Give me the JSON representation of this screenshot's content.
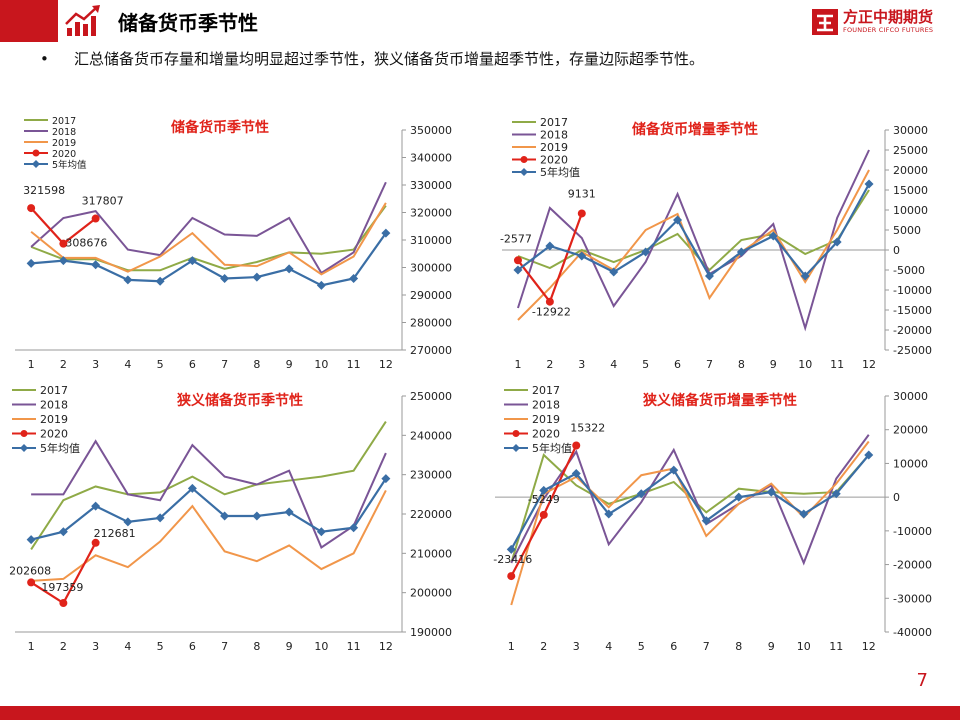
{
  "header": {
    "title": "储备货币季节性",
    "logo_cn": "方正中期期货",
    "logo_en": "FOUNDER CIFCO FUTURES",
    "accent": "#c8161d"
  },
  "summary": {
    "bullet": "•",
    "text": "汇总储备货币存量和增量均明显超过季节性，狭义储备货币增量超季节性，存量边际超季节性。"
  },
  "page_number": "7",
  "chart_data": [
    {
      "type": "line",
      "title": "储备货币季节性",
      "categories": [
        "1",
        "2",
        "3",
        "4",
        "5",
        "6",
        "7",
        "8",
        "9",
        "10",
        "11",
        "12"
      ],
      "ylim": [
        270000,
        350000
      ],
      "yticks": [
        "270000",
        "280000",
        "290000",
        "300000",
        "310000",
        "320000",
        "330000",
        "340000",
        "350000"
      ],
      "series": [
        {
          "name": "2017",
          "color": "#8faa47",
          "values": [
            307500,
            303000,
            303000,
            299000,
            299000,
            303500,
            299500,
            302000,
            305500,
            305000,
            306500,
            322500
          ]
        },
        {
          "name": "2018",
          "color": "#7a5596",
          "values": [
            307500,
            318000,
            320500,
            306500,
            304500,
            318000,
            312000,
            311500,
            318000,
            298000,
            305500,
            331000
          ]
        },
        {
          "name": "2019",
          "color": "#f1964a",
          "values": [
            313000,
            303500,
            303500,
            298500,
            304000,
            312500,
            301000,
            300500,
            305500,
            297500,
            304000,
            323500
          ]
        },
        {
          "name": "2020",
          "color": "#e0231a",
          "values": [
            321598,
            308676,
            317807
          ]
        },
        {
          "name": "5年均值",
          "color": "#3a6ea5",
          "values": [
            301500,
            302500,
            301000,
            295500,
            295000,
            302500,
            296000,
            296500,
            299500,
            293500,
            296000,
            312500
          ]
        }
      ],
      "labels": [
        {
          "text": "321598",
          "i": 0
        },
        {
          "text": "308676",
          "i": 1
        },
        {
          "text": "317807",
          "i": 2
        }
      ]
    },
    {
      "type": "line",
      "title": "储备货币增量季节性",
      "categories": [
        "1",
        "2",
        "3",
        "4",
        "5",
        "6",
        "7",
        "8",
        "9",
        "10",
        "11",
        "12"
      ],
      "ylim": [
        -25000,
        30000
      ],
      "yticks": [
        "-25000",
        "-20000",
        "-15000",
        "-10000",
        "-5000",
        "0",
        "5000",
        "10000",
        "15000",
        "20000",
        "25000",
        "30000"
      ],
      "series": [
        {
          "name": "2017",
          "color": "#8faa47",
          "values": [
            -1500,
            -4500,
            0,
            -3000,
            0,
            4000,
            -5000,
            2500,
            4000,
            -1000,
            2500,
            15000
          ]
        },
        {
          "name": "2018",
          "color": "#7a5596",
          "values": [
            -14500,
            10500,
            3000,
            -14000,
            -3000,
            14000,
            -6000,
            -1500,
            6500,
            -19500,
            8000,
            25000
          ]
        },
        {
          "name": "2019",
          "color": "#f1964a",
          "values": [
            -17500,
            -9500,
            -500,
            -5000,
            5000,
            9000,
            -12000,
            -500,
            5000,
            -8000,
            5000,
            20000
          ]
        },
        {
          "name": "2020",
          "color": "#e0231a",
          "values": [
            -2577,
            -12922,
            9131
          ]
        },
        {
          "name": "5年均值",
          "color": "#3a6ea5",
          "values": [
            -5000,
            1000,
            -1500,
            -5500,
            -500,
            7500,
            -6500,
            -500,
            3500,
            -6500,
            2000,
            16500
          ]
        }
      ],
      "labels": [
        {
          "text": "-2577",
          "i": 0
        },
        {
          "text": "-12922",
          "i": 1
        },
        {
          "text": "9131",
          "i": 2
        }
      ]
    },
    {
      "type": "line",
      "title": "狭义储备货币季节性",
      "categories": [
        "1",
        "2",
        "3",
        "4",
        "5",
        "6",
        "7",
        "8",
        "9",
        "10",
        "11",
        "12"
      ],
      "ylim": [
        190000,
        250000
      ],
      "yticks": [
        "190000",
        "200000",
        "210000",
        "220000",
        "230000",
        "240000",
        "250000"
      ],
      "series": [
        {
          "name": "2017",
          "color": "#8faa47",
          "values": [
            211000,
            223500,
            227000,
            225000,
            225500,
            229500,
            225000,
            227500,
            228500,
            229500,
            231000,
            243500
          ]
        },
        {
          "name": "2018",
          "color": "#7a5596",
          "values": [
            225000,
            225000,
            238500,
            225000,
            223500,
            237500,
            229500,
            227500,
            231000,
            211500,
            217000,
            235500
          ]
        },
        {
          "name": "2019",
          "color": "#f1964a",
          "values": [
            203000,
            203500,
            209500,
            206500,
            213000,
            222000,
            210500,
            208000,
            212000,
            206000,
            210000,
            226000
          ]
        },
        {
          "name": "2020",
          "color": "#e0231a",
          "values": [
            202608,
            197359,
            212681
          ]
        },
        {
          "name": "5年均值",
          "color": "#3a6ea5",
          "values": [
            213500,
            215500,
            222000,
            218000,
            219000,
            226500,
            219500,
            219500,
            220500,
            215500,
            216500,
            229000
          ]
        }
      ],
      "labels": [
        {
          "text": "202608",
          "i": 0
        },
        {
          "text": "197359",
          "i": 1
        },
        {
          "text": "212681",
          "i": 2
        }
      ]
    },
    {
      "type": "line",
      "title": "狭义储备货币增量季节性",
      "categories": [
        "1",
        "2",
        "3",
        "4",
        "5",
        "6",
        "7",
        "8",
        "9",
        "10",
        "11",
        "12"
      ],
      "ylim": [
        -40000,
        30000
      ],
      "yticks": [
        "-40000",
        "-30000",
        "-20000",
        "-10000",
        "0",
        "10000",
        "20000",
        "30000"
      ],
      "series": [
        {
          "name": "2017",
          "color": "#8faa47",
          "values": [
            -19500,
            12500,
            3500,
            -2000,
            1000,
            4500,
            -4500,
            2500,
            1500,
            1000,
            1500,
            12500
          ]
        },
        {
          "name": "2018",
          "color": "#7a5596",
          "values": [
            -19500,
            -500,
            13500,
            -14000,
            -1500,
            14000,
            -8000,
            -2000,
            3500,
            -19500,
            5500,
            18500
          ]
        },
        {
          "name": "2019",
          "color": "#f1964a",
          "values": [
            -32000,
            1000,
            6000,
            -3000,
            6500,
            8500,
            -11500,
            -2000,
            4000,
            -6000,
            4000,
            16500
          ]
        },
        {
          "name": "2020",
          "color": "#e0231a",
          "values": [
            -23416,
            -5249,
            15322
          ]
        },
        {
          "name": "5年均值",
          "color": "#3a6ea5",
          "values": [
            -15500,
            2000,
            7000,
            -5000,
            1000,
            8000,
            -7000,
            0,
            1500,
            -5000,
            1000,
            12500
          ]
        }
      ],
      "labels": [
        {
          "text": "-23416",
          "i": 0
        },
        {
          "text": "-5249",
          "i": 1
        },
        {
          "text": "15322",
          "i": 2
        }
      ]
    }
  ]
}
